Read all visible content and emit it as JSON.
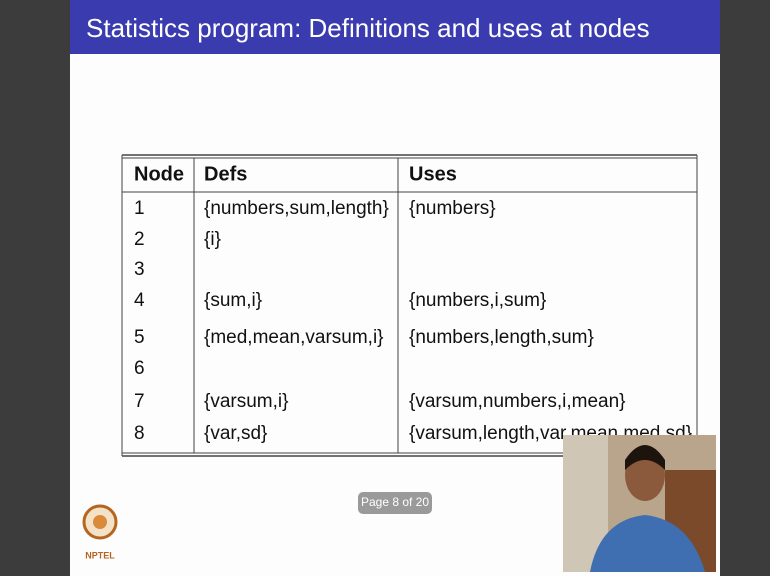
{
  "header": {
    "title": "Statistics program: Definitions and uses at nodes"
  },
  "table": {
    "columns": [
      "Node",
      "Defs",
      "Uses"
    ],
    "rows": [
      [
        "1",
        "{numbers,sum,length}",
        "{numbers}"
      ],
      [
        "2",
        "{i}",
        ""
      ],
      [
        "3",
        "",
        ""
      ],
      [
        "4",
        "{sum,i}",
        "{numbers,i,sum}"
      ],
      [
        "5",
        "{med,mean,varsum,i}",
        "{numbers,length,sum}"
      ],
      [
        "6",
        "",
        ""
      ],
      [
        "7",
        "{varsum,i}",
        "{varsum,numbers,i,mean}"
      ],
      [
        "8",
        "{var,sd}",
        "{varsum,length,var,mean,med,sd}"
      ]
    ]
  },
  "footer": {
    "page": "Page 8 of 20",
    "logo": "NPTEL"
  }
}
